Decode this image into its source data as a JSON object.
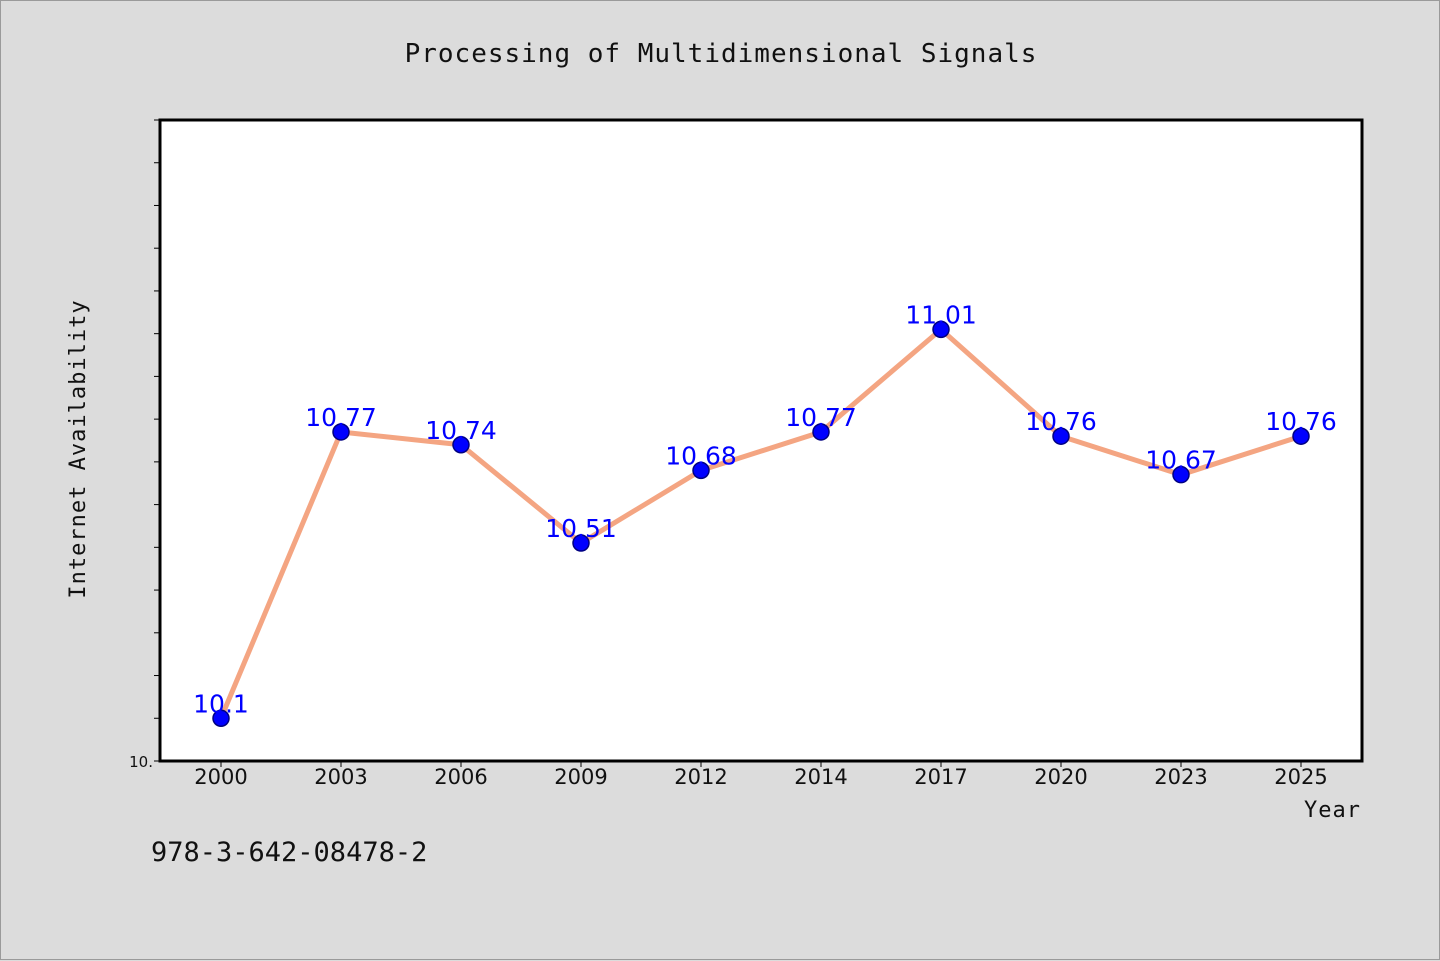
{
  "chart_data": {
    "type": "line",
    "title": "Processing of Multidimensional Signals",
    "xlabel": "Year",
    "ylabel": "Internet Availability",
    "categories": [
      "2000",
      "2003",
      "2006",
      "2009",
      "2012",
      "2014",
      "2017",
      "2020",
      "2023",
      "2025"
    ],
    "series": [
      {
        "values": [
          10.1,
          10.77,
          10.74,
          10.51,
          10.68,
          10.77,
          11.01,
          10.76,
          10.67,
          10.76
        ],
        "labels": [
          "10.1",
          "10.77",
          "10.74",
          "10.51",
          "10.68",
          "10.77",
          "11.01",
          "10.76",
          "10.67",
          "10.76"
        ]
      }
    ],
    "ylim": [
      10.0,
      11.5
    ],
    "y_tick_labels": [
      "10."
    ],
    "grid": false,
    "legend": "none",
    "colors": {
      "line": "#f4a582",
      "marker": "#0000ff",
      "marker_edge": "#000080",
      "data_label": "#0000ff",
      "background": "#dcdcdc",
      "plot_area": "#ffffff"
    }
  },
  "footer": {
    "isbn": "978-3-642-08478-2"
  }
}
